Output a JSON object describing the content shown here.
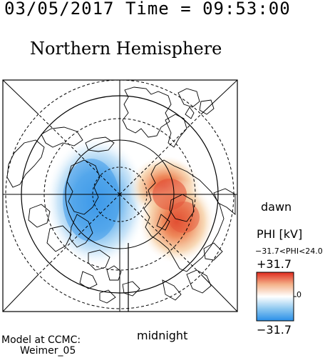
{
  "header": {
    "timestamp": "03/05/2017 Time = 09:53:00",
    "title": "Northern Hemisphere"
  },
  "map": {
    "projection": "polar",
    "hemisphere": "northern",
    "rings": 4,
    "positive_color": "#e8553a",
    "negative_color": "#4fa3e8",
    "potential_centers": {
      "negative": "dusk side",
      "positive": "dawn side"
    }
  },
  "labels": {
    "dawn": "dawn",
    "midnight": "midnight"
  },
  "colorbar": {
    "title": "PHI [kV]",
    "range_text": "−31.7<PHI<24.0",
    "max_label": "+31.7",
    "min_label": "−31.7",
    "mid_label": "0",
    "min": -31.7,
    "max": 31.7,
    "data_min": -31.7,
    "data_max": 24.0,
    "colors": [
      "#2a8fe8",
      "#8ec8f0",
      "#ffffff",
      "#f4b28a",
      "#e02a1e"
    ]
  },
  "footer": {
    "model_line1": "Model at CCMC:",
    "model_line2": "Weimer_05"
  }
}
